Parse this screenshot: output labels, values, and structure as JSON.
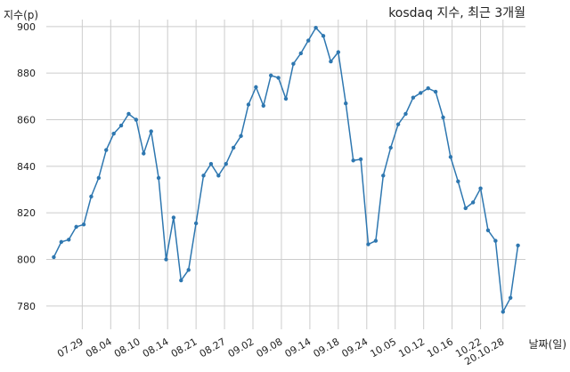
{
  "chart_data": {
    "type": "line",
    "title": "kosdaq 지수, 최근 3개월",
    "ylabel": "지수(p)",
    "xlabel": "날짜(일)",
    "ylim": [
      770,
      903
    ],
    "yticks": [
      780,
      800,
      820,
      840,
      860,
      880,
      900
    ],
    "grid": true,
    "xticks": [
      {
        "index": 3.8,
        "label": "07.29"
      },
      {
        "index": 7.6,
        "label": "08.04"
      },
      {
        "index": 11.4,
        "label": "08.10"
      },
      {
        "index": 15.2,
        "label": "08.14"
      },
      {
        "index": 19.0,
        "label": "08.21"
      },
      {
        "index": 22.8,
        "label": "08.27"
      },
      {
        "index": 26.6,
        "label": "09.02"
      },
      {
        "index": 30.4,
        "label": "09.08"
      },
      {
        "index": 34.2,
        "label": "09.14"
      },
      {
        "index": 38.0,
        "label": "09.18"
      },
      {
        "index": 41.8,
        "label": "09.24"
      },
      {
        "index": 45.6,
        "label": "10.05"
      },
      {
        "index": 49.4,
        "label": "10.12"
      },
      {
        "index": 53.2,
        "label": "10.16"
      },
      {
        "index": 57.0,
        "label": "10.22"
      },
      {
        "index": 60.0,
        "label": "20.10.28"
      }
    ],
    "series": [
      {
        "values": [
          801,
          807.5,
          808.5,
          814,
          815,
          827,
          835,
          847,
          854,
          857.5,
          862.5,
          860,
          845.5,
          855,
          835,
          800,
          818,
          791,
          795.5,
          815.5,
          836,
          841,
          836,
          841,
          848,
          853,
          866.5,
          874,
          866,
          879,
          878,
          869,
          884,
          888.5,
          894,
          899.5,
          896,
          885,
          889,
          867,
          842.5,
          843,
          806.5,
          808,
          836,
          848,
          858,
          862.5,
          869.5,
          871.5,
          873.5,
          872,
          861,
          844,
          833.5,
          822,
          824.5,
          830.5,
          812.5,
          808,
          777.5,
          783.5,
          806
        ]
      }
    ]
  }
}
